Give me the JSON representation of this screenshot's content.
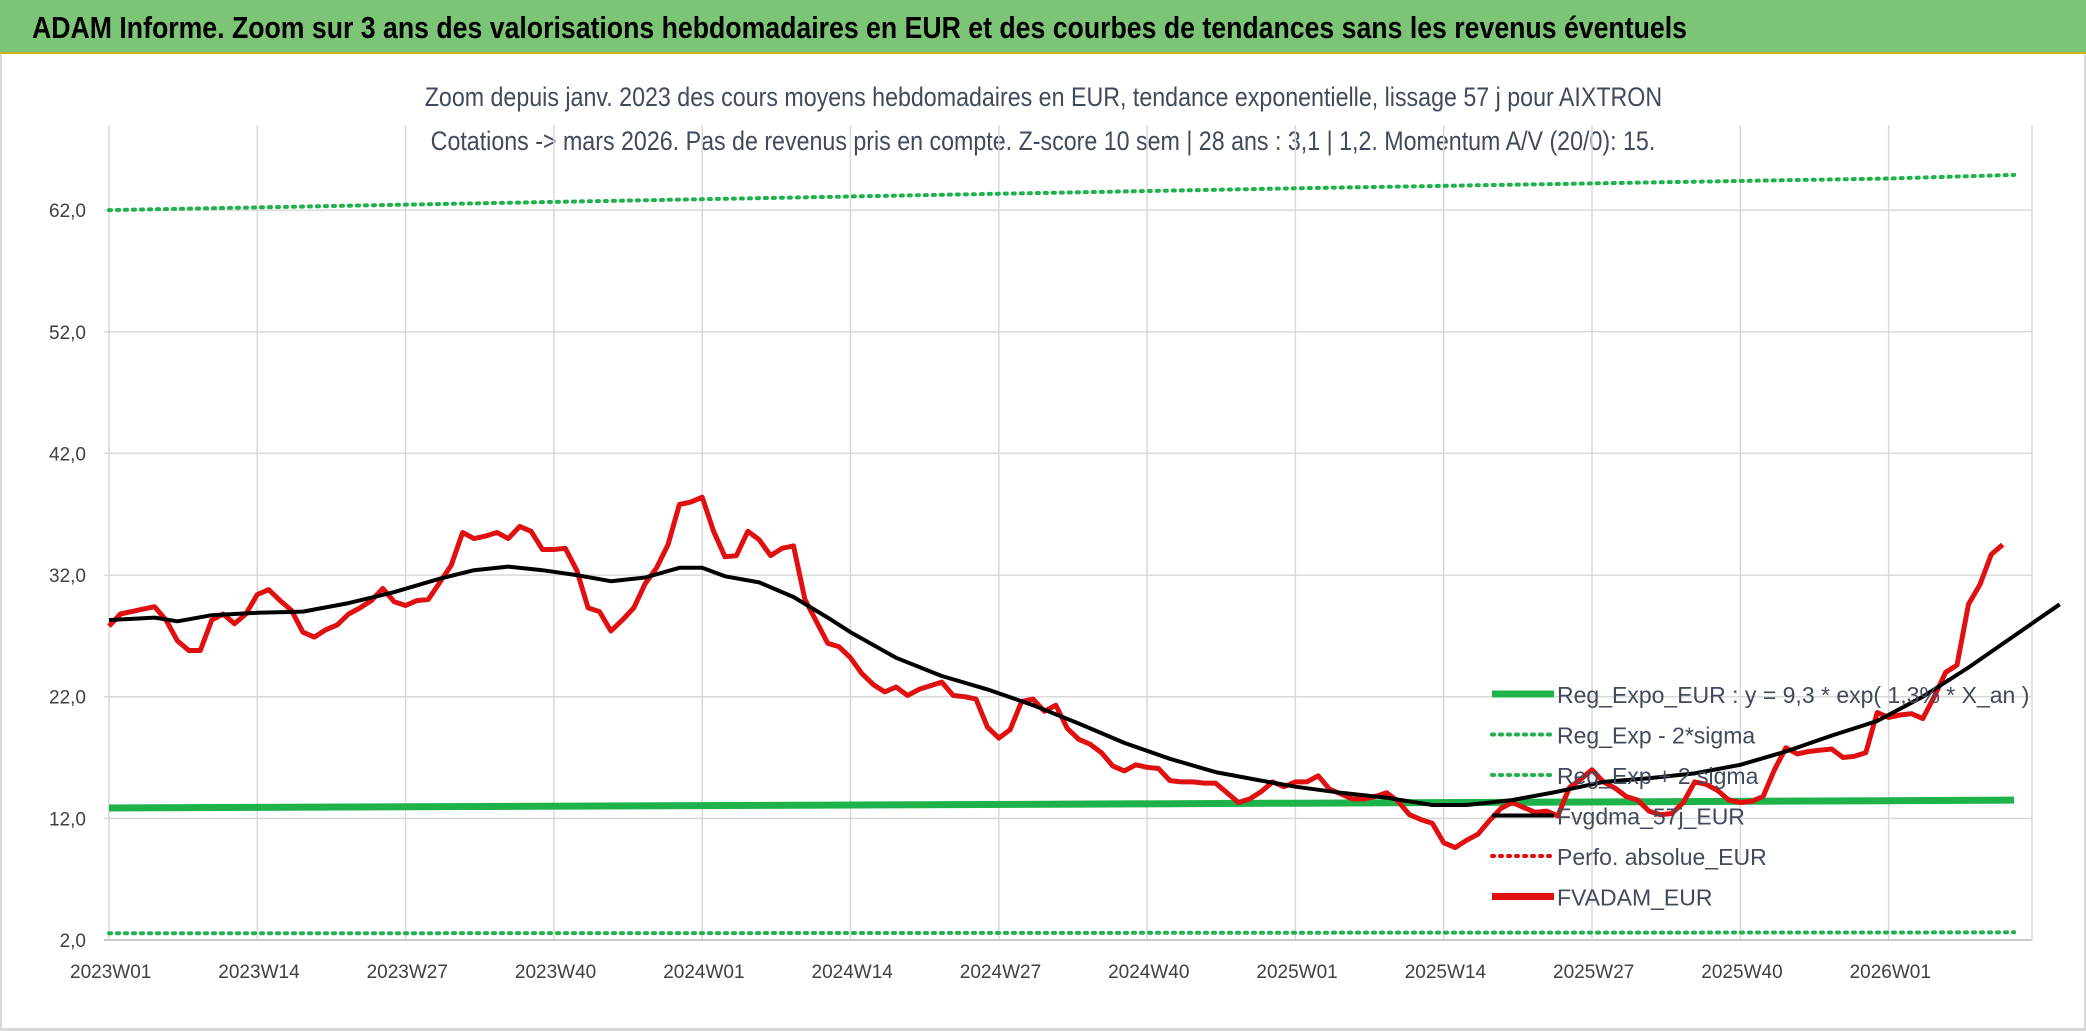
{
  "header": {
    "title": "ADAM Informe. Zoom sur 3 ans des valorisations hebdomadaires en EUR et des courbes de tendances sans les revenus éventuels"
  },
  "chart_data": {
    "type": "line",
    "title": "Zoom depuis janv. 2023 des cours moyens hebdomadaires en EUR, tendance exponentielle, lissage 57 j pour AIXTRON",
    "subtitle": "Cotations -> mars 2026. Pas de revenus pris en compte. Z-score 10 sem | 28 ans : 3,1 | 1,2. Momentum A/V (20/0): 15.",
    "xlabel": "",
    "ylabel": "",
    "x_tick_labels": [
      "2023W01",
      "2023W14",
      "2023W27",
      "2023W40",
      "2024W01",
      "2024W14",
      "2024W27",
      "2024W40",
      "2025W01",
      "2025W14",
      "2025W27",
      "2025W40",
      "2026W01"
    ],
    "y_tick_labels": [
      "2,0",
      "12,0",
      "22,0",
      "32,0",
      "42,0",
      "52,0",
      "62,0"
    ],
    "ylim": [
      2,
      69
    ],
    "grid": true,
    "legend_position": "bottom-right",
    "colors": {
      "regression": "#1db34a",
      "sigma": "#1db34a",
      "smoothing": "#000000",
      "perfo": "#e01010",
      "price": "#e01010",
      "grid": "#d9d9d9",
      "axis_text": "#404040"
    },
    "series": [
      {
        "name": "Reg_Expo_EUR : y = 9,3 * exp( 1,3% * X_an )",
        "style": "solid-thick",
        "points": [
          [
            "2023W01",
            12.85
          ],
          [
            "2024W01",
            13.05
          ],
          [
            "2025W01",
            13.25
          ],
          [
            "2026W01",
            13.45
          ],
          [
            "2026W12",
            13.5
          ]
        ]
      },
      {
        "name": "Reg_Exp - 2*sigma",
        "style": "dotted",
        "points": [
          [
            "2023W01",
            2.55
          ],
          [
            "2024W01",
            2.57
          ],
          [
            "2025W01",
            2.6
          ],
          [
            "2026W01",
            2.62
          ],
          [
            "2026W12",
            2.63
          ]
        ]
      },
      {
        "name": "Reg_Exp + 2 sigma",
        "style": "dotted",
        "points": [
          [
            "2023W01",
            62.0
          ],
          [
            "2024W01",
            62.9
          ],
          [
            "2025W01",
            63.8
          ],
          [
            "2026W01",
            64.6
          ],
          [
            "2026W12",
            64.9
          ]
        ]
      },
      {
        "name": "Fvgdma_57j_EUR",
        "style": "solid",
        "points": [
          [
            "2023W01",
            28.3
          ],
          [
            "2023W05",
            28.5
          ],
          [
            "2023W07",
            28.2
          ],
          [
            "2023W10",
            28.7
          ],
          [
            "2023W14",
            28.9
          ],
          [
            "2023W18",
            29.0
          ],
          [
            "2023W22",
            29.7
          ],
          [
            "2023W26",
            30.6
          ],
          [
            "2023W30",
            31.7
          ],
          [
            "2023W33",
            32.4
          ],
          [
            "2023W36",
            32.7
          ],
          [
            "2023W39",
            32.4
          ],
          [
            "2023W42",
            32.0
          ],
          [
            "2023W45",
            31.5
          ],
          [
            "2023W48",
            31.8
          ],
          [
            "2023W51",
            32.6
          ],
          [
            "2024W01",
            32.6
          ],
          [
            "2024W03",
            31.9
          ],
          [
            "2024W06",
            31.4
          ],
          [
            "2024W09",
            30.2
          ],
          [
            "2024W12",
            28.5
          ],
          [
            "2024W14",
            27.3
          ],
          [
            "2024W18",
            25.2
          ],
          [
            "2024W22",
            23.7
          ],
          [
            "2024W26",
            22.6
          ],
          [
            "2024W30",
            21.3
          ],
          [
            "2024W34",
            19.8
          ],
          [
            "2024W38",
            18.2
          ],
          [
            "2024W42",
            16.9
          ],
          [
            "2024W46",
            15.8
          ],
          [
            "2024W50",
            15.1
          ],
          [
            "2025W01",
            14.6
          ],
          [
            "2025W05",
            14.1
          ],
          [
            "2025W09",
            13.7
          ],
          [
            "2025W13",
            13.1
          ],
          [
            "2025W16",
            13.1
          ],
          [
            "2025W20",
            13.5
          ],
          [
            "2025W24",
            14.2
          ],
          [
            "2025W28",
            15.0
          ],
          [
            "2025W32",
            15.3
          ],
          [
            "2025W36",
            15.7
          ],
          [
            "2025W40",
            16.4
          ],
          [
            "2025W44",
            17.5
          ],
          [
            "2025W48",
            18.8
          ],
          [
            "2025W52",
            20.0
          ],
          [
            "2026W04",
            22.0
          ],
          [
            "2026W08",
            24.4
          ],
          [
            "2026W12",
            27.0
          ],
          [
            "2026W16",
            29.6
          ]
        ]
      },
      {
        "name": "Perfo. absolue_EUR",
        "style": "dotted",
        "points": []
      },
      {
        "name": "FVADAM_EUR",
        "style": "solid-thick",
        "points": [
          [
            "2023W01",
            27.8
          ],
          [
            "2023W02",
            28.8
          ],
          [
            "2023W04",
            29.2
          ],
          [
            "2023W05",
            29.4
          ],
          [
            "2023W06",
            28.3
          ],
          [
            "2023W07",
            26.6
          ],
          [
            "2023W08",
            25.8
          ],
          [
            "2023W09",
            25.8
          ],
          [
            "2023W10",
            28.3
          ],
          [
            "2023W11",
            28.8
          ],
          [
            "2023W12",
            28.0
          ],
          [
            "2023W13",
            28.8
          ],
          [
            "2023W14",
            30.4
          ],
          [
            "2023W15",
            30.8
          ],
          [
            "2023W16",
            29.9
          ],
          [
            "2023W17",
            29.1
          ],
          [
            "2023W18",
            27.3
          ],
          [
            "2023W19",
            26.9
          ],
          [
            "2023W20",
            27.5
          ],
          [
            "2023W21",
            27.9
          ],
          [
            "2023W22",
            28.8
          ],
          [
            "2023W23",
            29.3
          ],
          [
            "2023W24",
            29.9
          ],
          [
            "2023W25",
            30.9
          ],
          [
            "2023W26",
            29.8
          ],
          [
            "2023W27",
            29.5
          ],
          [
            "2023W28",
            29.9
          ],
          [
            "2023W29",
            30.0
          ],
          [
            "2023W30",
            31.4
          ],
          [
            "2023W31",
            32.8
          ],
          [
            "2023W32",
            35.5
          ],
          [
            "2023W33",
            35.0
          ],
          [
            "2023W34",
            35.2
          ],
          [
            "2023W35",
            35.5
          ],
          [
            "2023W36",
            35.0
          ],
          [
            "2023W37",
            36.0
          ],
          [
            "2023W38",
            35.6
          ],
          [
            "2023W39",
            34.1
          ],
          [
            "2023W40",
            34.1
          ],
          [
            "2023W41",
            34.2
          ],
          [
            "2023W42",
            32.4
          ],
          [
            "2023W43",
            29.3
          ],
          [
            "2023W44",
            29.0
          ],
          [
            "2023W45",
            27.4
          ],
          [
            "2023W46",
            28.3
          ],
          [
            "2023W47",
            29.3
          ],
          [
            "2023W48",
            31.3
          ],
          [
            "2023W49",
            32.6
          ],
          [
            "2023W50",
            34.5
          ],
          [
            "2023W51",
            37.8
          ],
          [
            "2023W52",
            38.0
          ],
          [
            "2024W01",
            38.4
          ],
          [
            "2024W02",
            35.6
          ],
          [
            "2024W03",
            33.5
          ],
          [
            "2024W04",
            33.6
          ],
          [
            "2024W05",
            35.6
          ],
          [
            "2024W06",
            34.9
          ],
          [
            "2024W07",
            33.6
          ],
          [
            "2024W08",
            34.2
          ],
          [
            "2024W09",
            34.4
          ],
          [
            "2024W10",
            30.0
          ],
          [
            "2024W11",
            28.2
          ],
          [
            "2024W12",
            26.4
          ],
          [
            "2024W13",
            26.1
          ],
          [
            "2024W14",
            25.2
          ],
          [
            "2024W15",
            23.9
          ],
          [
            "2024W16",
            23.0
          ],
          [
            "2024W17",
            22.4
          ],
          [
            "2024W18",
            22.8
          ],
          [
            "2024W19",
            22.1
          ],
          [
            "2024W20",
            22.6
          ],
          [
            "2024W21",
            22.9
          ],
          [
            "2024W22",
            23.2
          ],
          [
            "2024W23",
            22.1
          ],
          [
            "2024W24",
            22.0
          ],
          [
            "2024W25",
            21.8
          ],
          [
            "2024W26",
            19.5
          ],
          [
            "2024W27",
            18.6
          ],
          [
            "2024W28",
            19.3
          ],
          [
            "2024W29",
            21.6
          ],
          [
            "2024W30",
            21.8
          ],
          [
            "2024W31",
            20.8
          ],
          [
            "2024W32",
            21.3
          ],
          [
            "2024W33",
            19.4
          ],
          [
            "2024W34",
            18.5
          ],
          [
            "2024W35",
            18.1
          ],
          [
            "2024W36",
            17.4
          ],
          [
            "2024W37",
            16.3
          ],
          [
            "2024W38",
            15.9
          ],
          [
            "2024W39",
            16.4
          ],
          [
            "2024W40",
            16.2
          ],
          [
            "2024W41",
            16.1
          ],
          [
            "2024W42",
            15.1
          ],
          [
            "2024W43",
            15.0
          ],
          [
            "2024W44",
            15.0
          ],
          [
            "2024W45",
            14.9
          ],
          [
            "2024W46",
            14.9
          ],
          [
            "2024W47",
            14.1
          ],
          [
            "2024W48",
            13.3
          ],
          [
            "2024W49",
            13.6
          ],
          [
            "2024W50",
            14.2
          ],
          [
            "2024W51",
            15.0
          ],
          [
            "2024W52",
            14.6
          ],
          [
            "2025W01",
            15.0
          ],
          [
            "2025W02",
            15.0
          ],
          [
            "2025W03",
            15.5
          ],
          [
            "2025W04",
            14.4
          ],
          [
            "2025W05",
            14.0
          ],
          [
            "2025W06",
            13.6
          ],
          [
            "2025W07",
            13.6
          ],
          [
            "2025W08",
            13.8
          ],
          [
            "2025W09",
            14.1
          ],
          [
            "2025W10",
            13.4
          ],
          [
            "2025W11",
            12.3
          ],
          [
            "2025W12",
            11.9
          ],
          [
            "2025W13",
            11.6
          ],
          [
            "2025W14",
            10.0
          ],
          [
            "2025W15",
            9.6
          ],
          [
            "2025W16",
            10.2
          ],
          [
            "2025W17",
            10.7
          ],
          [
            "2025W18",
            11.8
          ],
          [
            "2025W19",
            12.8
          ],
          [
            "2025W20",
            13.3
          ],
          [
            "2025W21",
            12.9
          ],
          [
            "2025W22",
            12.5
          ],
          [
            "2025W23",
            12.6
          ],
          [
            "2025W24",
            12.2
          ],
          [
            "2025W25",
            14.5
          ],
          [
            "2025W26",
            15.2
          ],
          [
            "2025W27",
            16.0
          ],
          [
            "2025W28",
            15.0
          ],
          [
            "2025W29",
            14.5
          ],
          [
            "2025W30",
            13.8
          ],
          [
            "2025W31",
            13.5
          ],
          [
            "2025W32",
            12.6
          ],
          [
            "2025W33",
            12.3
          ],
          [
            "2025W34",
            12.4
          ],
          [
            "2025W35",
            13.3
          ],
          [
            "2025W36",
            15.0
          ],
          [
            "2025W37",
            14.8
          ],
          [
            "2025W38",
            14.3
          ],
          [
            "2025W39",
            13.5
          ],
          [
            "2025W40",
            13.3
          ],
          [
            "2025W41",
            13.4
          ],
          [
            "2025W42",
            13.8
          ],
          [
            "2025W43",
            16.0
          ],
          [
            "2025W44",
            17.8
          ],
          [
            "2025W45",
            17.3
          ],
          [
            "2025W46",
            17.5
          ],
          [
            "2025W47",
            17.6
          ],
          [
            "2025W48",
            17.7
          ],
          [
            "2025W49",
            17.0
          ],
          [
            "2025W50",
            17.1
          ],
          [
            "2025W51",
            17.4
          ],
          [
            "2025W52",
            20.7
          ],
          [
            "2026W01",
            20.3
          ],
          [
            "2026W02",
            20.5
          ],
          [
            "2026W03",
            20.6
          ],
          [
            "2026W04",
            20.2
          ],
          [
            "2026W05",
            22.0
          ],
          [
            "2026W06",
            24.0
          ],
          [
            "2026W07",
            24.6
          ],
          [
            "2026W08",
            29.6
          ],
          [
            "2026W09",
            31.2
          ],
          [
            "2026W10",
            33.7
          ],
          [
            "2026W11",
            34.5
          ]
        ]
      }
    ]
  }
}
